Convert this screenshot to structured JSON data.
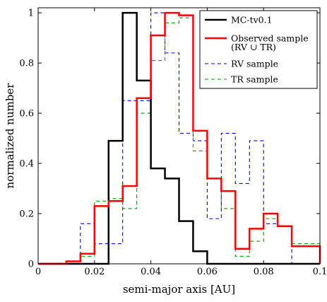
{
  "chart_data": {
    "type": "line",
    "style": "step-histogram",
    "xlabel": "semi-major axis [AU]",
    "ylabel": "normalized number",
    "xlim": [
      0,
      0.1
    ],
    "ylim": [
      0,
      1.02
    ],
    "xticks": [
      0,
      0.02,
      0.04,
      0.06,
      0.08,
      0.1
    ],
    "xtick_labels": [
      "0",
      "0.02",
      "0.04",
      "0.06",
      "0.08",
      "0.1"
    ],
    "yticks": [
      0,
      0.2,
      0.4,
      0.6,
      0.8,
      1
    ],
    "ytick_labels": [
      "0",
      "0.2",
      "0.4",
      "0.6",
      "0.8",
      "1"
    ],
    "grid": false,
    "legend_position": "top-right",
    "bin_edges": [
      0,
      0.005,
      0.01,
      0.015,
      0.02,
      0.025,
      0.03,
      0.035,
      0.04,
      0.045,
      0.05,
      0.055,
      0.06,
      0.065,
      0.07,
      0.075,
      0.08,
      0.085,
      0.09,
      0.095,
      0.1
    ],
    "series": [
      {
        "name": "MC-tv0.1",
        "color": "#000000",
        "line": "solid",
        "width": 2.5,
        "values": [
          0,
          0,
          0,
          0,
          0,
          0.49,
          1.0,
          0.73,
          0.38,
          0.34,
          0.17,
          0.05,
          0,
          0,
          0,
          0,
          0,
          0,
          0,
          0
        ]
      },
      {
        "name": "Observed sample",
        "name_line2": "(RV ∪ TR)",
        "color": "#ff0000",
        "line": "solid",
        "width": 2.5,
        "values": [
          0,
          0,
          0.01,
          0.04,
          0.23,
          0.25,
          0.31,
          0.66,
          0.91,
          1.0,
          0.99,
          0.53,
          0.34,
          0.29,
          0.06,
          0.14,
          0.2,
          0.15,
          0.07,
          0.07
        ]
      },
      {
        "name": "RV sample",
        "color": "#0000ff",
        "line": "dashed",
        "width": 1.1,
        "values": [
          0,
          0,
          0,
          0.16,
          0.08,
          0.08,
          0.65,
          0.65,
          1.0,
          0.84,
          0.52,
          0.49,
          0.18,
          0.52,
          0.32,
          0.49,
          0.16,
          0.15,
          0,
          0
        ]
      },
      {
        "name": "TR sample",
        "color": "#00a000",
        "line": "dashed",
        "width": 1.1,
        "values": [
          0,
          0,
          0,
          0.03,
          0.25,
          0.26,
          0.22,
          0.6,
          0.81,
          0.96,
          0.98,
          0.45,
          0.34,
          0.22,
          0.03,
          0.09,
          0.18,
          0.15,
          0.08,
          0.08
        ]
      }
    ]
  }
}
